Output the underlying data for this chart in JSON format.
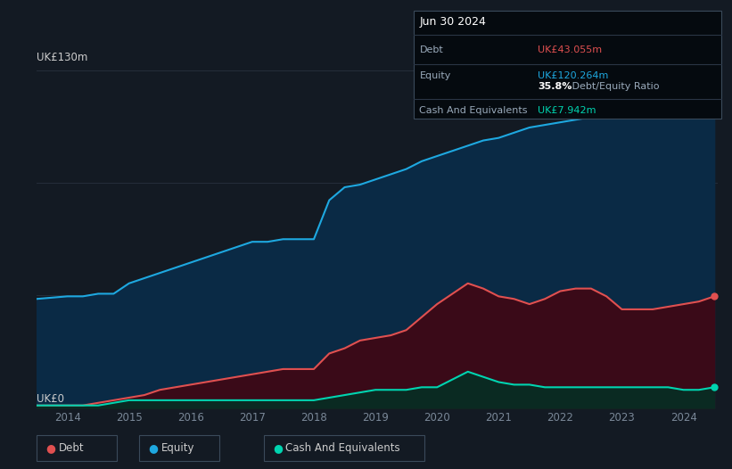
{
  "background_color": "#131a23",
  "plot_bg_color": "#131a23",
  "title_box": {
    "date": "Jun 30 2024",
    "debt_label": "Debt",
    "debt_value": "UK£43.055m",
    "equity_label": "Equity",
    "equity_value": "UK£120.264m",
    "ratio_bold": "35.8%",
    "ratio_text": " Debt/Equity Ratio",
    "cash_label": "Cash And Equivalents",
    "cash_value": "UK£7.942m"
  },
  "y_label_top": "UK£130m",
  "y_label_bottom": "UK£0",
  "x_ticks": [
    "2014",
    "2015",
    "2016",
    "2017",
    "2018",
    "2019",
    "2020",
    "2021",
    "2022",
    "2023",
    "2024"
  ],
  "ylim": [
    0,
    130
  ],
  "equity_color": "#1ea8e0",
  "debt_color": "#e05050",
  "cash_color": "#00d4b0",
  "equity_fill": "#0a2a45",
  "debt_fill": "#3a0a18",
  "cash_fill": "#0a2a22",
  "grid_color": "#252e3a",
  "legend_bg": "#1a2535",
  "legend_border": "#2a3545",
  "equity_data": {
    "x": [
      2013.5,
      2014.0,
      2014.25,
      2014.5,
      2014.75,
      2015.0,
      2015.25,
      2015.5,
      2015.75,
      2016.0,
      2016.25,
      2016.5,
      2016.75,
      2017.0,
      2017.25,
      2017.5,
      2017.75,
      2018.0,
      2018.25,
      2018.5,
      2018.75,
      2019.0,
      2019.25,
      2019.5,
      2019.75,
      2020.0,
      2020.25,
      2020.5,
      2020.75,
      2021.0,
      2021.25,
      2021.5,
      2021.75,
      2022.0,
      2022.25,
      2022.5,
      2022.75,
      2023.0,
      2023.25,
      2023.5,
      2023.75,
      2024.0,
      2024.25,
      2024.5
    ],
    "y": [
      42,
      43,
      43,
      44,
      44,
      48,
      50,
      52,
      54,
      56,
      58,
      60,
      62,
      64,
      64,
      65,
      65,
      65,
      80,
      85,
      86,
      88,
      90,
      92,
      95,
      97,
      99,
      101,
      103,
      104,
      106,
      108,
      109,
      110,
      111,
      112,
      112,
      113,
      114,
      115,
      116,
      118,
      119,
      120
    ]
  },
  "debt_data": {
    "x": [
      2013.5,
      2014.0,
      2014.25,
      2014.5,
      2014.75,
      2015.0,
      2015.25,
      2015.5,
      2015.75,
      2016.0,
      2016.25,
      2016.5,
      2016.75,
      2017.0,
      2017.25,
      2017.5,
      2017.75,
      2018.0,
      2018.25,
      2018.5,
      2018.75,
      2019.0,
      2019.25,
      2019.5,
      2019.75,
      2020.0,
      2020.25,
      2020.5,
      2020.75,
      2021.0,
      2021.25,
      2021.5,
      2021.75,
      2022.0,
      2022.25,
      2022.5,
      2022.75,
      2023.0,
      2023.25,
      2023.5,
      2023.75,
      2024.0,
      2024.25,
      2024.5
    ],
    "y": [
      1,
      1,
      1,
      2,
      3,
      4,
      5,
      7,
      8,
      9,
      10,
      11,
      12,
      13,
      14,
      15,
      15,
      15,
      21,
      23,
      26,
      27,
      28,
      30,
      35,
      40,
      44,
      48,
      46,
      43,
      42,
      40,
      42,
      45,
      46,
      46,
      43,
      38,
      38,
      38,
      39,
      40,
      41,
      43
    ]
  },
  "cash_data": {
    "x": [
      2013.5,
      2014.0,
      2014.25,
      2014.5,
      2014.75,
      2015.0,
      2015.25,
      2015.5,
      2015.75,
      2016.0,
      2016.25,
      2016.5,
      2016.75,
      2017.0,
      2017.25,
      2017.5,
      2017.75,
      2018.0,
      2018.25,
      2018.5,
      2018.75,
      2019.0,
      2019.25,
      2019.5,
      2019.75,
      2020.0,
      2020.25,
      2020.5,
      2020.75,
      2021.0,
      2021.25,
      2021.5,
      2021.75,
      2022.0,
      2022.25,
      2022.5,
      2022.75,
      2023.0,
      2023.25,
      2023.5,
      2023.75,
      2024.0,
      2024.25,
      2024.5
    ],
    "y": [
      1,
      1,
      1,
      1,
      2,
      3,
      3,
      3,
      3,
      3,
      3,
      3,
      3,
      3,
      3,
      3,
      3,
      3,
      4,
      5,
      6,
      7,
      7,
      7,
      8,
      8,
      11,
      14,
      12,
      10,
      9,
      9,
      8,
      8,
      8,
      8,
      8,
      8,
      8,
      8,
      8,
      7,
      7,
      8
    ]
  },
  "legend_items": [
    {
      "label": "Debt",
      "color": "#e05050"
    },
    {
      "label": "Equity",
      "color": "#1ea8e0"
    },
    {
      "label": "Cash And Equivalents",
      "color": "#00d4b0"
    }
  ]
}
